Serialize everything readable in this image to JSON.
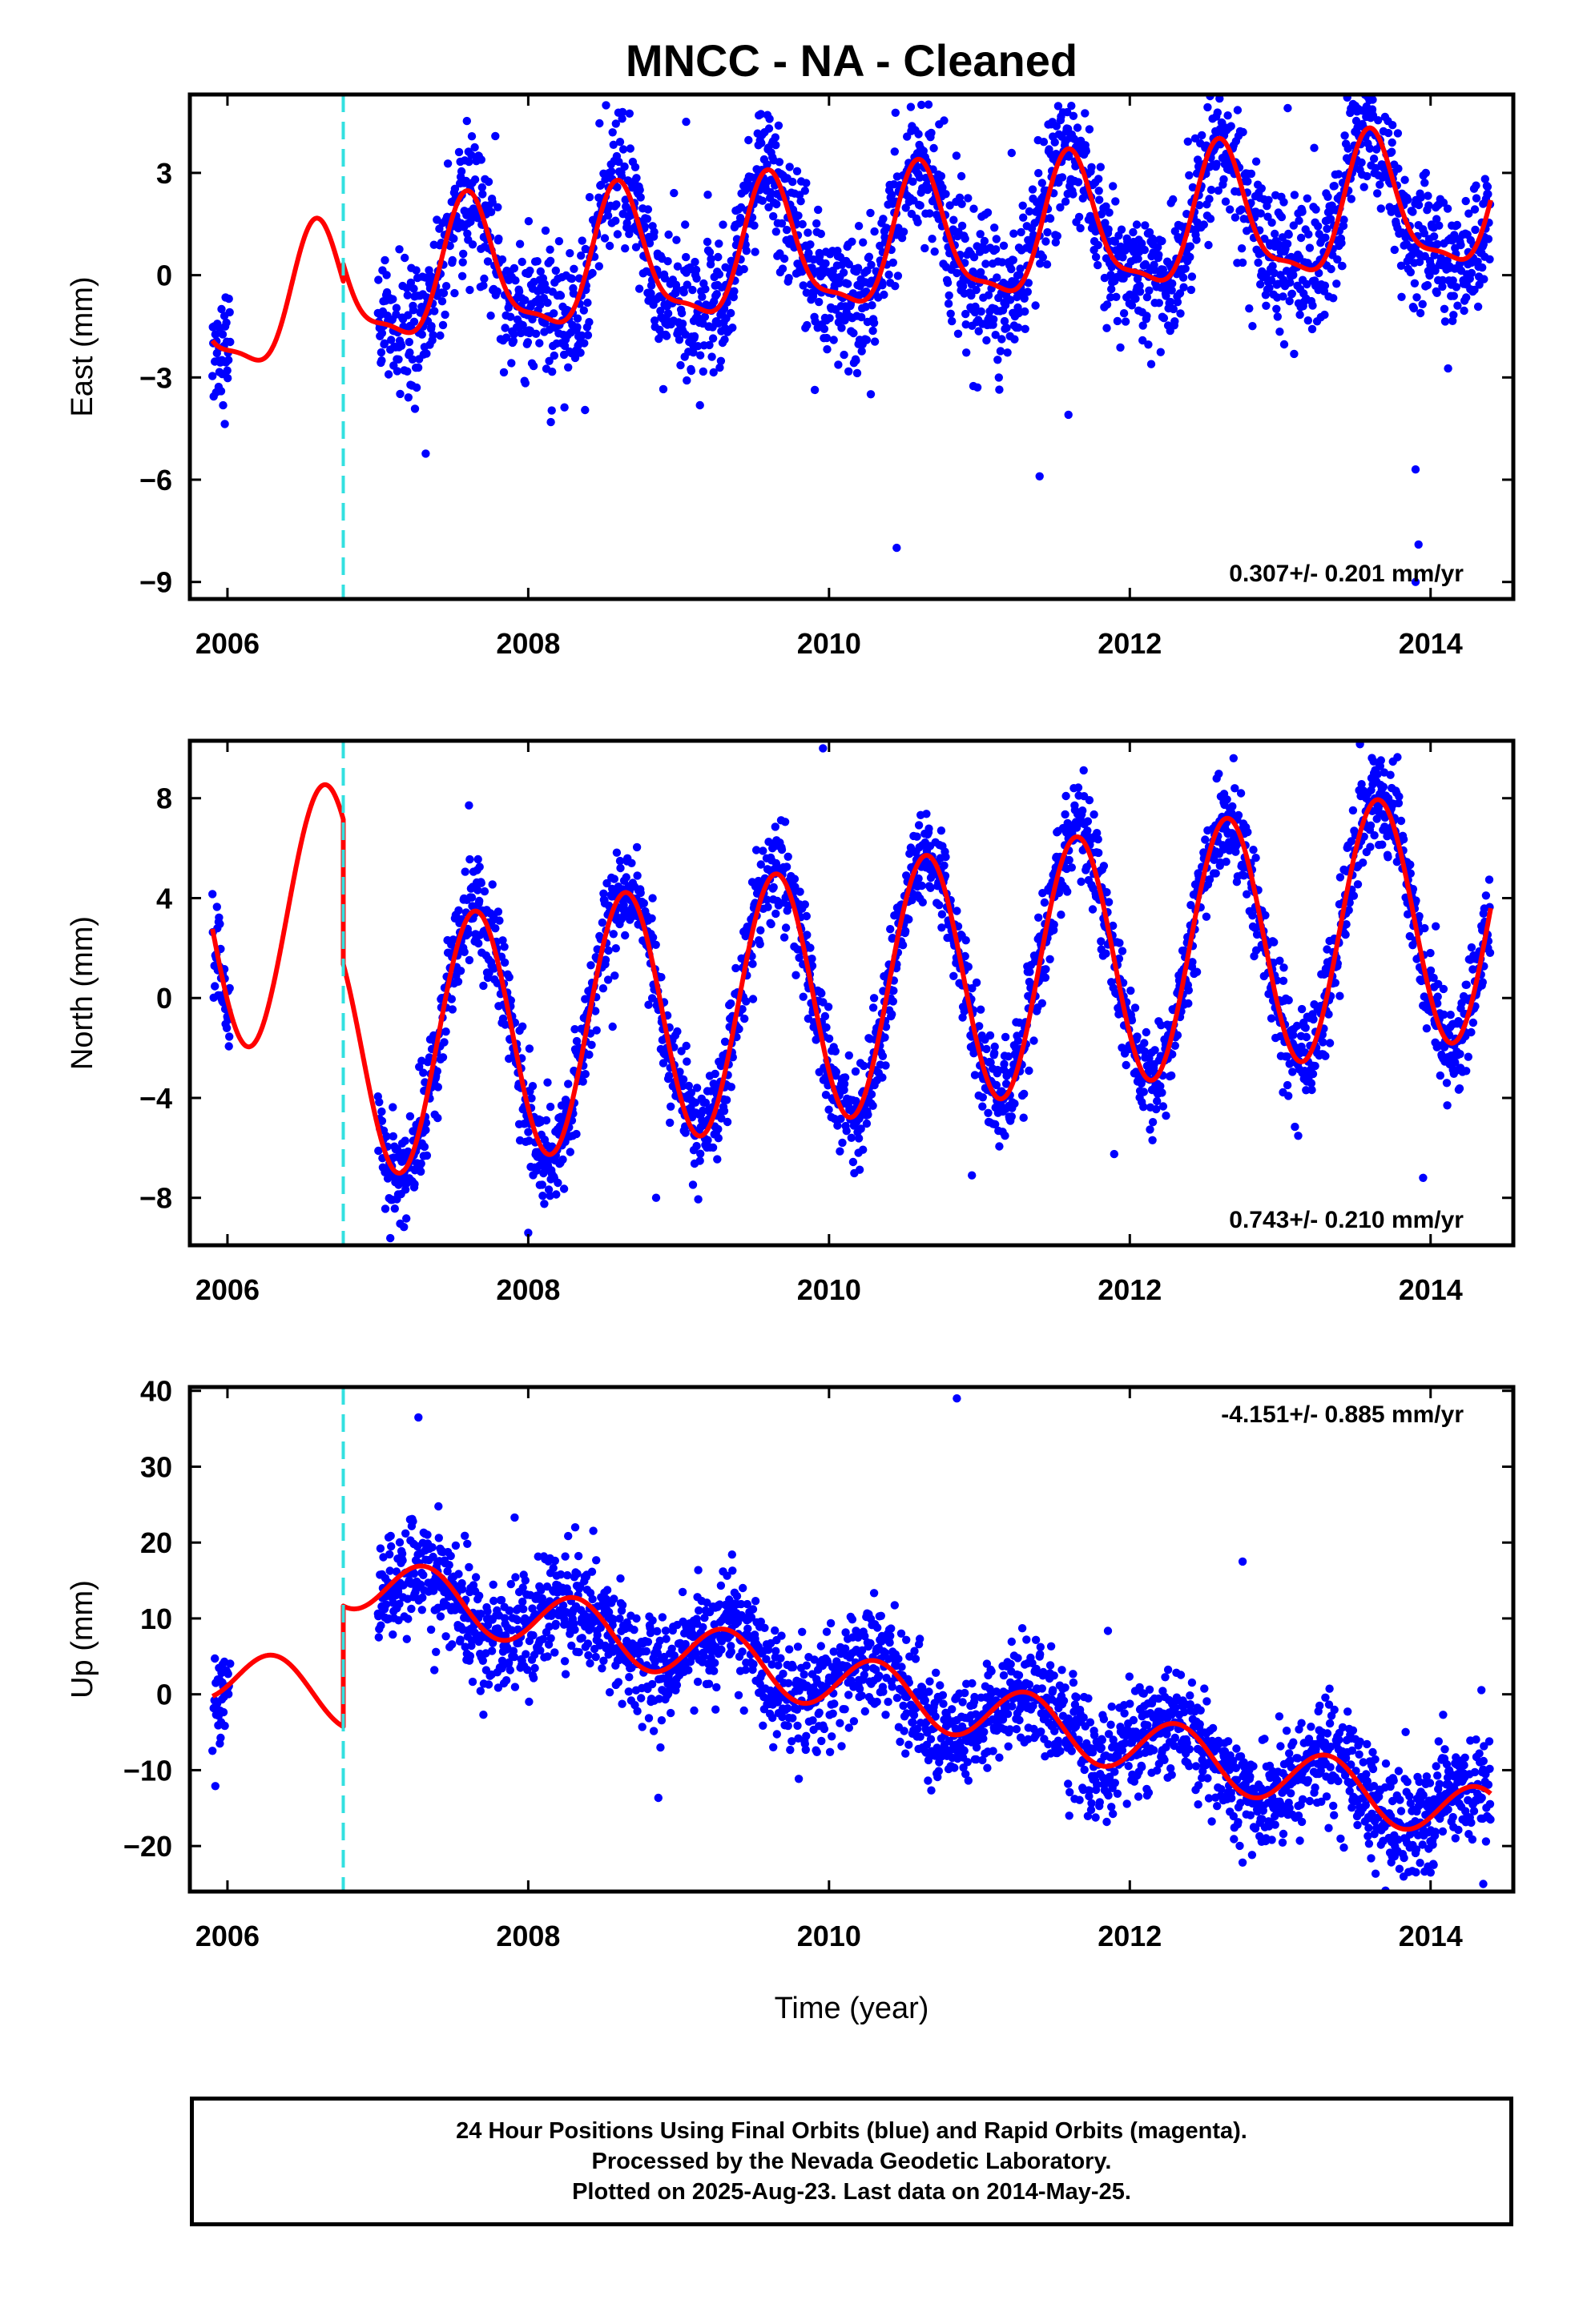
{
  "title": "MNCC  - NA - Cleaned",
  "xaxis_label": "Time (year)",
  "caption": {
    "line1": "24 Hour Positions Using Final Orbits (blue) and Rapid Orbits (magenta).",
    "line2": "Processed by the Nevada Geodetic Laboratory.",
    "line3": "Plotted on 2025-Aug-23. Last data on 2014-May-25."
  },
  "colors": {
    "observations": "#0000ff",
    "model": "#ff0000",
    "equipment_change": "#33e0e0"
  },
  "chart_data": [
    {
      "type": "scatter",
      "ylabel": "East (mm)",
      "rate_text": "0.307+/- 0.201 mm/yr",
      "xlim": [
        2005.75,
        2014.55
      ],
      "ylim": [
        -9.5,
        5.3
      ],
      "xticks": [
        2006,
        2008,
        2010,
        2012,
        2014
      ],
      "yticks": [
        3,
        0,
        -3,
        -6,
        -9
      ],
      "ytick_labels": [
        "3",
        "0",
        "−3",
        "−6",
        "−9"
      ],
      "equipment_change": 2006.77,
      "data_start": 2005.9,
      "data_end": 2014.4,
      "model": {
        "pre": {
          "intercept": -1.0,
          "slope": 0.307,
          "a1": -1.2,
          "b1": -1.5,
          "a2": 0.5,
          "b2": 0.3
        },
        "post": {
          "intercept": -0.5,
          "slope": 0.307,
          "a1": -1.2,
          "b1": -1.5,
          "a2": 0.5,
          "b2": 0.3
        }
      },
      "scatter_sd": 1.0,
      "outliers": [
        [
          2010.45,
          -8.0
        ],
        [
          2011.4,
          -5.9
        ],
        [
          2013.9,
          -5.7
        ],
        [
          2013.92,
          -7.9
        ],
        [
          2013.9,
          -9.0
        ],
        [
          2009.05,
          4.5
        ],
        [
          2013.05,
          4.9
        ]
      ]
    },
    {
      "type": "scatter",
      "ylabel": "North (mm)",
      "rate_text": "0.743+/- 0.210 mm/yr",
      "xlim": [
        2005.75,
        2014.55
      ],
      "ylim": [
        -9.9,
        10.3
      ],
      "xticks": [
        2006,
        2008,
        2010,
        2012,
        2014
      ],
      "yticks": [
        8,
        4,
        0,
        -4,
        -8
      ],
      "ytick_labels": [
        "8",
        "4",
        "0",
        "−4",
        "−8"
      ],
      "equipment_change": 2006.77,
      "data_start": 2005.9,
      "data_end": 2014.4,
      "model": {
        "pre": {
          "intercept": 3.0,
          "slope": 0.743,
          "a1": -4.0,
          "b1": -3.1,
          "a2": 0.0,
          "b2": 0.0
        },
        "post": {
          "intercept": -2.8,
          "slope": 0.743,
          "a1": -4.0,
          "b1": -3.1,
          "a2": 0.0,
          "b2": 0.0
        }
      },
      "scatter_sd": 1.0,
      "outliers": [
        [
          2009.96,
          10.0
        ],
        [
          2008.0,
          -9.4
        ],
        [
          2013.95,
          -7.2
        ],
        [
          2008.85,
          -8.0
        ],
        [
          2010.95,
          -7.1
        ]
      ]
    },
    {
      "type": "scatter",
      "ylabel": "Up (mm)",
      "rate_text": "-4.151+/- 0.885 mm/yr",
      "xlim": [
        2005.75,
        2014.55
      ],
      "ylim": [
        -26,
        40.5
      ],
      "xticks": [
        2006,
        2008,
        2010,
        2012,
        2014
      ],
      "yticks": [
        40,
        30,
        20,
        10,
        0,
        -10,
        -20
      ],
      "ytick_labels": [
        "40",
        "30",
        "20",
        "10",
        "0",
        "−10",
        "−20"
      ],
      "equipment_change": 2006.77,
      "data_start": 2005.9,
      "data_end": 2014.4,
      "model": {
        "pre": {
          "intercept": 2.6,
          "slope": -4.151,
          "a1": 3.5,
          "b1": -1.5,
          "a2": 0.0,
          "b2": 0.0
        },
        "post": {
          "intercept": 18.5,
          "slope": -4.151,
          "a1": 3.5,
          "b1": -1.5,
          "a2": 0.0,
          "b2": 0.0
        }
      },
      "scatter_sd": 3.6,
      "outliers": [
        [
          2007.27,
          36.5
        ],
        [
          2010.85,
          39.0
        ],
        [
          2012.75,
          17.5
        ],
        [
          2014.0,
          -23.5
        ],
        [
          2014.35,
          -25.0
        ]
      ]
    }
  ]
}
